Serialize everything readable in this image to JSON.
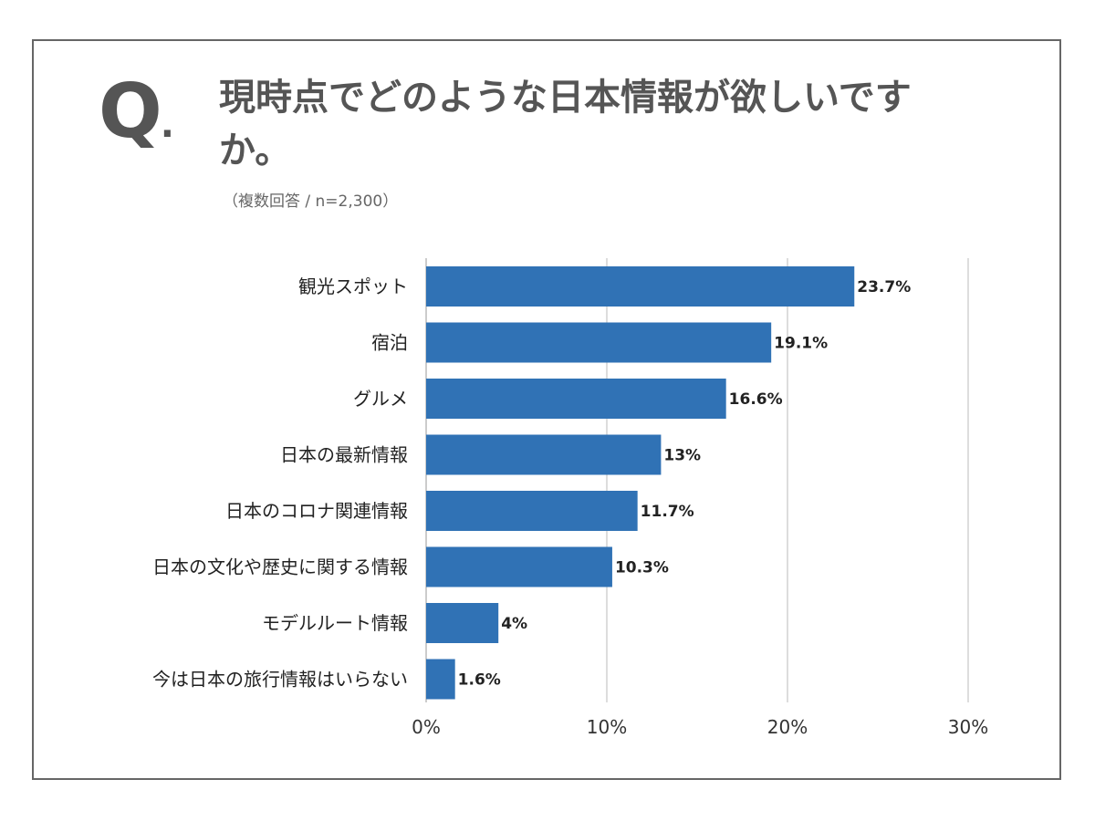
{
  "header": {
    "q_mark": "Q",
    "q_dot": ".",
    "title": "現時点でどのような日本情報が欲しいですか。",
    "subtitle": "（複数回答 / n=2,300）"
  },
  "colors": {
    "bar": "#3072B5",
    "grid": "#BBBBBB",
    "frame": "#666666"
  },
  "chart_data": {
    "type": "bar",
    "orientation": "horizontal",
    "title": "現時点でどのような日本情報が欲しいですか。",
    "categories": [
      "観光スポット",
      "宿泊",
      "グルメ",
      "日本の最新情報",
      "日本のコロナ関連情報",
      "日本の文化や歴史に関する情報",
      "モデルルート情報",
      "今は日本の旅行情報はいらない"
    ],
    "values": [
      23.7,
      19.1,
      16.6,
      13,
      11.7,
      10.3,
      4,
      1.6
    ],
    "value_labels": [
      "23.7%",
      "19.1%",
      "16.6%",
      "13%",
      "11.7%",
      "10.3%",
      "4%",
      "1.6%"
    ],
    "xlim": [
      0,
      30
    ],
    "xticks": [
      0,
      10,
      20,
      30
    ],
    "xtick_labels": [
      "0%",
      "10%",
      "20%",
      "30%"
    ],
    "grid": true,
    "xlabel": "",
    "ylabel": ""
  }
}
